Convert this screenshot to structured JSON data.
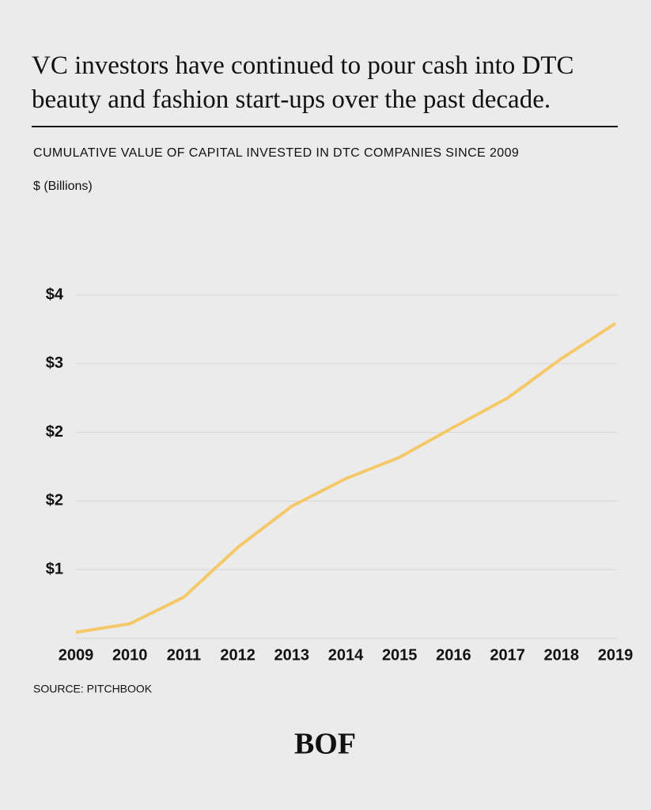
{
  "chart_data": {
    "type": "line",
    "title": "VC investors have continued to pour cash into DTC beauty and fashion start-ups over the past decade.",
    "subtitle": "CUMULATIVE VALUE OF CAPITAL INVESTED IN DTC COMPANIES SINCE 2009",
    "y_label": "$ (Billions)",
    "source": "SOURCE: PITCHBOOK",
    "logo": "BOF",
    "x": [
      2009,
      2010,
      2011,
      2012,
      2013,
      2014,
      2015,
      2016,
      2017,
      2018,
      2019
    ],
    "xlim": [
      2009,
      2019
    ],
    "xticks": [
      2009,
      2010,
      2011,
      2012,
      2013,
      2014,
      2015,
      2016,
      2017,
      2018,
      2019
    ],
    "series": [
      {
        "color": "#f5c96a",
        "values": [
          0.07,
          0.17,
          0.48,
          1.06,
          1.54,
          1.86,
          2.11,
          2.46,
          2.8,
          3.26,
          3.67
        ]
      }
    ],
    "ylim": [
      0,
      4
    ],
    "yticks": [
      {
        "value": 0.8,
        "label": "$1"
      },
      {
        "value": 1.6,
        "label": "$2"
      },
      {
        "value": 2.4,
        "label": "$2"
      },
      {
        "value": 3.2,
        "label": "$3"
      },
      {
        "value": 4.0,
        "label": "$4"
      }
    ],
    "grid": true
  }
}
